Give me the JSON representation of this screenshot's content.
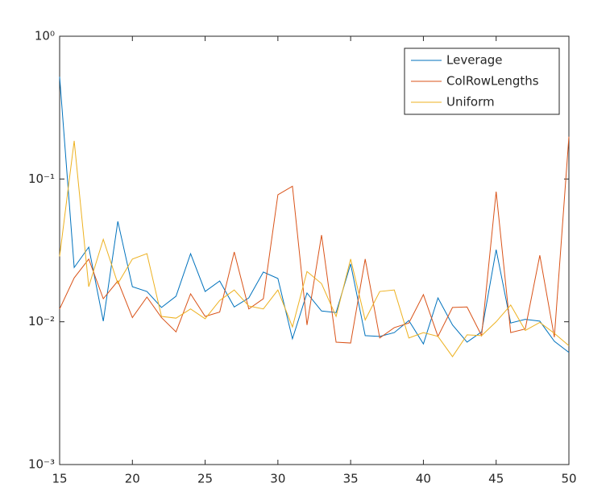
{
  "chart_data": {
    "type": "line",
    "x": [
      15,
      16,
      17,
      18,
      19,
      20,
      21,
      22,
      23,
      24,
      25,
      26,
      27,
      28,
      29,
      30,
      31,
      32,
      33,
      34,
      35,
      36,
      37,
      38,
      39,
      40,
      41,
      42,
      43,
      44,
      45,
      46,
      47,
      48,
      49,
      50
    ],
    "series": [
      {
        "name": "Leverage",
        "color": "#0072BD",
        "values": [
          0.52,
          0.024,
          0.0333,
          0.0101,
          0.0505,
          0.0176,
          0.0163,
          0.0126,
          0.0151,
          0.03,
          0.0163,
          0.0193,
          0.0127,
          0.0147,
          0.0223,
          0.0201,
          0.0076,
          0.0159,
          0.0119,
          0.0116,
          0.0254,
          0.008,
          0.0079,
          0.0084,
          0.0102,
          0.007,
          0.0147,
          0.0095,
          0.0072,
          0.0085,
          0.032,
          0.0098,
          0.0104,
          0.0101,
          0.0073,
          0.0061
        ]
      },
      {
        "name": "ColRowLengths",
        "color": "#D95319",
        "values": [
          0.0123,
          0.0203,
          0.0275,
          0.0145,
          0.0193,
          0.0107,
          0.0149,
          0.0107,
          0.0085,
          0.0157,
          0.0109,
          0.0117,
          0.0308,
          0.0123,
          0.0145,
          0.0775,
          0.089,
          0.0095,
          0.0405,
          0.0072,
          0.0071,
          0.0275,
          0.0077,
          0.0091,
          0.0098,
          0.0155,
          0.0079,
          0.0126,
          0.0127,
          0.008,
          0.0816,
          0.0084,
          0.0089,
          0.0292,
          0.0078,
          0.198
        ]
      },
      {
        "name": "Uniform",
        "color": "#EDB120",
        "values": [
          0.0287,
          0.185,
          0.0176,
          0.0378,
          0.0185,
          0.0275,
          0.03,
          0.0109,
          0.0106,
          0.0123,
          0.0105,
          0.0141,
          0.0167,
          0.0129,
          0.0123,
          0.0167,
          0.0092,
          0.0225,
          0.0185,
          0.0109,
          0.0275,
          0.0103,
          0.0163,
          0.0167,
          0.0077,
          0.0084,
          0.0079,
          0.0057,
          0.0081,
          0.008,
          0.01,
          0.0131,
          0.0087,
          0.0099,
          0.0083,
          0.0068
        ]
      }
    ],
    "xlim": [
      15,
      50
    ],
    "xticks": [
      15,
      20,
      25,
      30,
      35,
      40,
      45,
      50
    ],
    "ylim": [
      0.001,
      1
    ],
    "ylog": true,
    "yticks": [
      {
        "value": 0.001,
        "label": "10⁻³"
      },
      {
        "value": 0.01,
        "label": "10⁻²"
      },
      {
        "value": 0.1,
        "label": "10⁻¹"
      },
      {
        "value": 1,
        "label": "10⁰"
      }
    ],
    "legend": "top-right"
  }
}
